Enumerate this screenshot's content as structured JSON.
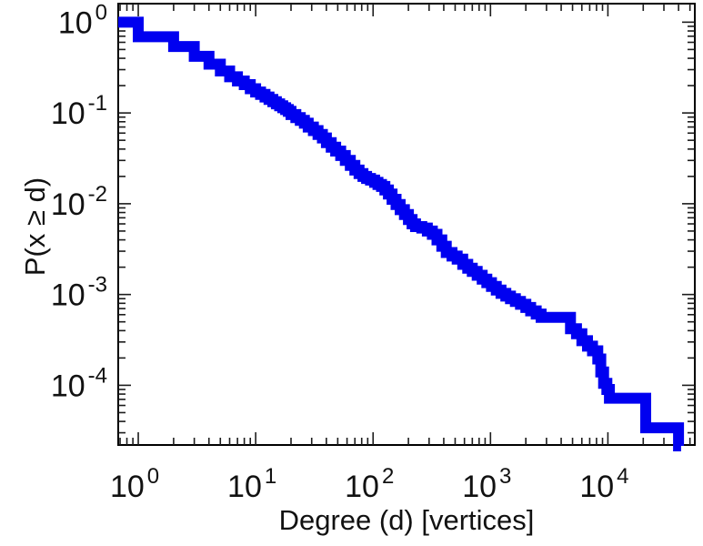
{
  "style": {
    "background": "#ffffff",
    "frame_color": "#000000",
    "tick_color": "#1c1c1c",
    "text_color": "#111111",
    "line_color": "#0000f0",
    "line_width": 12
  },
  "chart_data": {
    "type": "line",
    "subtype": "step-ccdf-loglog",
    "title": "",
    "xlabel": "Degree (d) [vertices]",
    "ylabel": "P(x ≥ d)",
    "xscale": "log",
    "yscale": "log",
    "grid": false,
    "legend": "none",
    "xlim": [
      0.675,
      55000
    ],
    "ylim": [
      2.2e-05,
      1.6
    ],
    "x_tick_exponents": [
      0,
      1,
      2,
      3,
      4
    ],
    "y_tick_exponents": [
      0,
      -1,
      -2,
      -3,
      -4
    ],
    "points": [
      [
        1,
        1.0
      ],
      [
        2,
        0.69
      ],
      [
        3,
        0.54
      ],
      [
        4,
        0.42
      ],
      [
        5,
        0.345
      ],
      [
        6,
        0.29
      ],
      [
        7,
        0.25
      ],
      [
        8,
        0.225
      ],
      [
        9,
        0.205
      ],
      [
        10,
        0.185
      ],
      [
        11,
        0.17
      ],
      [
        12,
        0.16
      ],
      [
        13,
        0.15
      ],
      [
        14,
        0.141
      ],
      [
        15,
        0.133
      ],
      [
        16,
        0.126
      ],
      [
        17,
        0.12
      ],
      [
        18,
        0.114
      ],
      [
        19,
        0.109
      ],
      [
        20,
        0.104
      ],
      [
        22,
        0.096
      ],
      [
        24,
        0.089
      ],
      [
        26,
        0.083
      ],
      [
        28,
        0.077
      ],
      [
        31,
        0.07
      ],
      [
        34,
        0.064
      ],
      [
        37,
        0.058
      ],
      [
        40,
        0.053
      ],
      [
        44,
        0.047
      ],
      [
        48,
        0.042
      ],
      [
        53,
        0.038
      ],
      [
        58,
        0.034
      ],
      [
        64,
        0.03
      ],
      [
        70,
        0.0265
      ],
      [
        76,
        0.0235
      ],
      [
        82,
        0.0215
      ],
      [
        88,
        0.02
      ],
      [
        95,
        0.019
      ],
      [
        103,
        0.0182
      ],
      [
        110,
        0.0172
      ],
      [
        118,
        0.0163
      ],
      [
        126,
        0.0155
      ],
      [
        135,
        0.0142
      ],
      [
        145,
        0.0128
      ],
      [
        157,
        0.0112
      ],
      [
        170,
        0.0098
      ],
      [
        185,
        0.0086
      ],
      [
        200,
        0.0076
      ],
      [
        215,
        0.0067
      ],
      [
        230,
        0.006
      ],
      [
        260,
        0.0056
      ],
      [
        290,
        0.0054
      ],
      [
        320,
        0.005
      ],
      [
        350,
        0.0046
      ],
      [
        385,
        0.004
      ],
      [
        420,
        0.0034
      ],
      [
        470,
        0.0029
      ],
      [
        520,
        0.00265
      ],
      [
        580,
        0.00245
      ],
      [
        640,
        0.00215
      ],
      [
        700,
        0.00195
      ],
      [
        770,
        0.0018
      ],
      [
        850,
        0.00163
      ],
      [
        930,
        0.00148
      ],
      [
        1020,
        0.00135
      ],
      [
        1120,
        0.00123
      ],
      [
        1230,
        0.00112
      ],
      [
        1350,
        0.00103
      ],
      [
        1480,
        0.00096
      ],
      [
        1630,
        0.0009
      ],
      [
        1800,
        0.00084
      ],
      [
        2000,
        0.00078
      ],
      [
        2200,
        0.00072
      ],
      [
        2450,
        0.00066
      ],
      [
        2700,
        0.00061
      ],
      [
        4800,
        0.00056
      ],
      [
        5400,
        0.00042
      ],
      [
        6000,
        0.00037
      ],
      [
        6700,
        0.00031
      ],
      [
        7400,
        0.00027
      ],
      [
        8200,
        0.00024
      ],
      [
        8700,
        0.000195
      ],
      [
        9200,
        0.00014
      ],
      [
        9800,
        0.000105
      ],
      [
        10300,
        9e-05
      ],
      [
        21000,
        7.2e-05
      ],
      [
        40000,
        3.4e-05
      ],
      [
        42000,
        2.15e-05
      ]
    ]
  }
}
